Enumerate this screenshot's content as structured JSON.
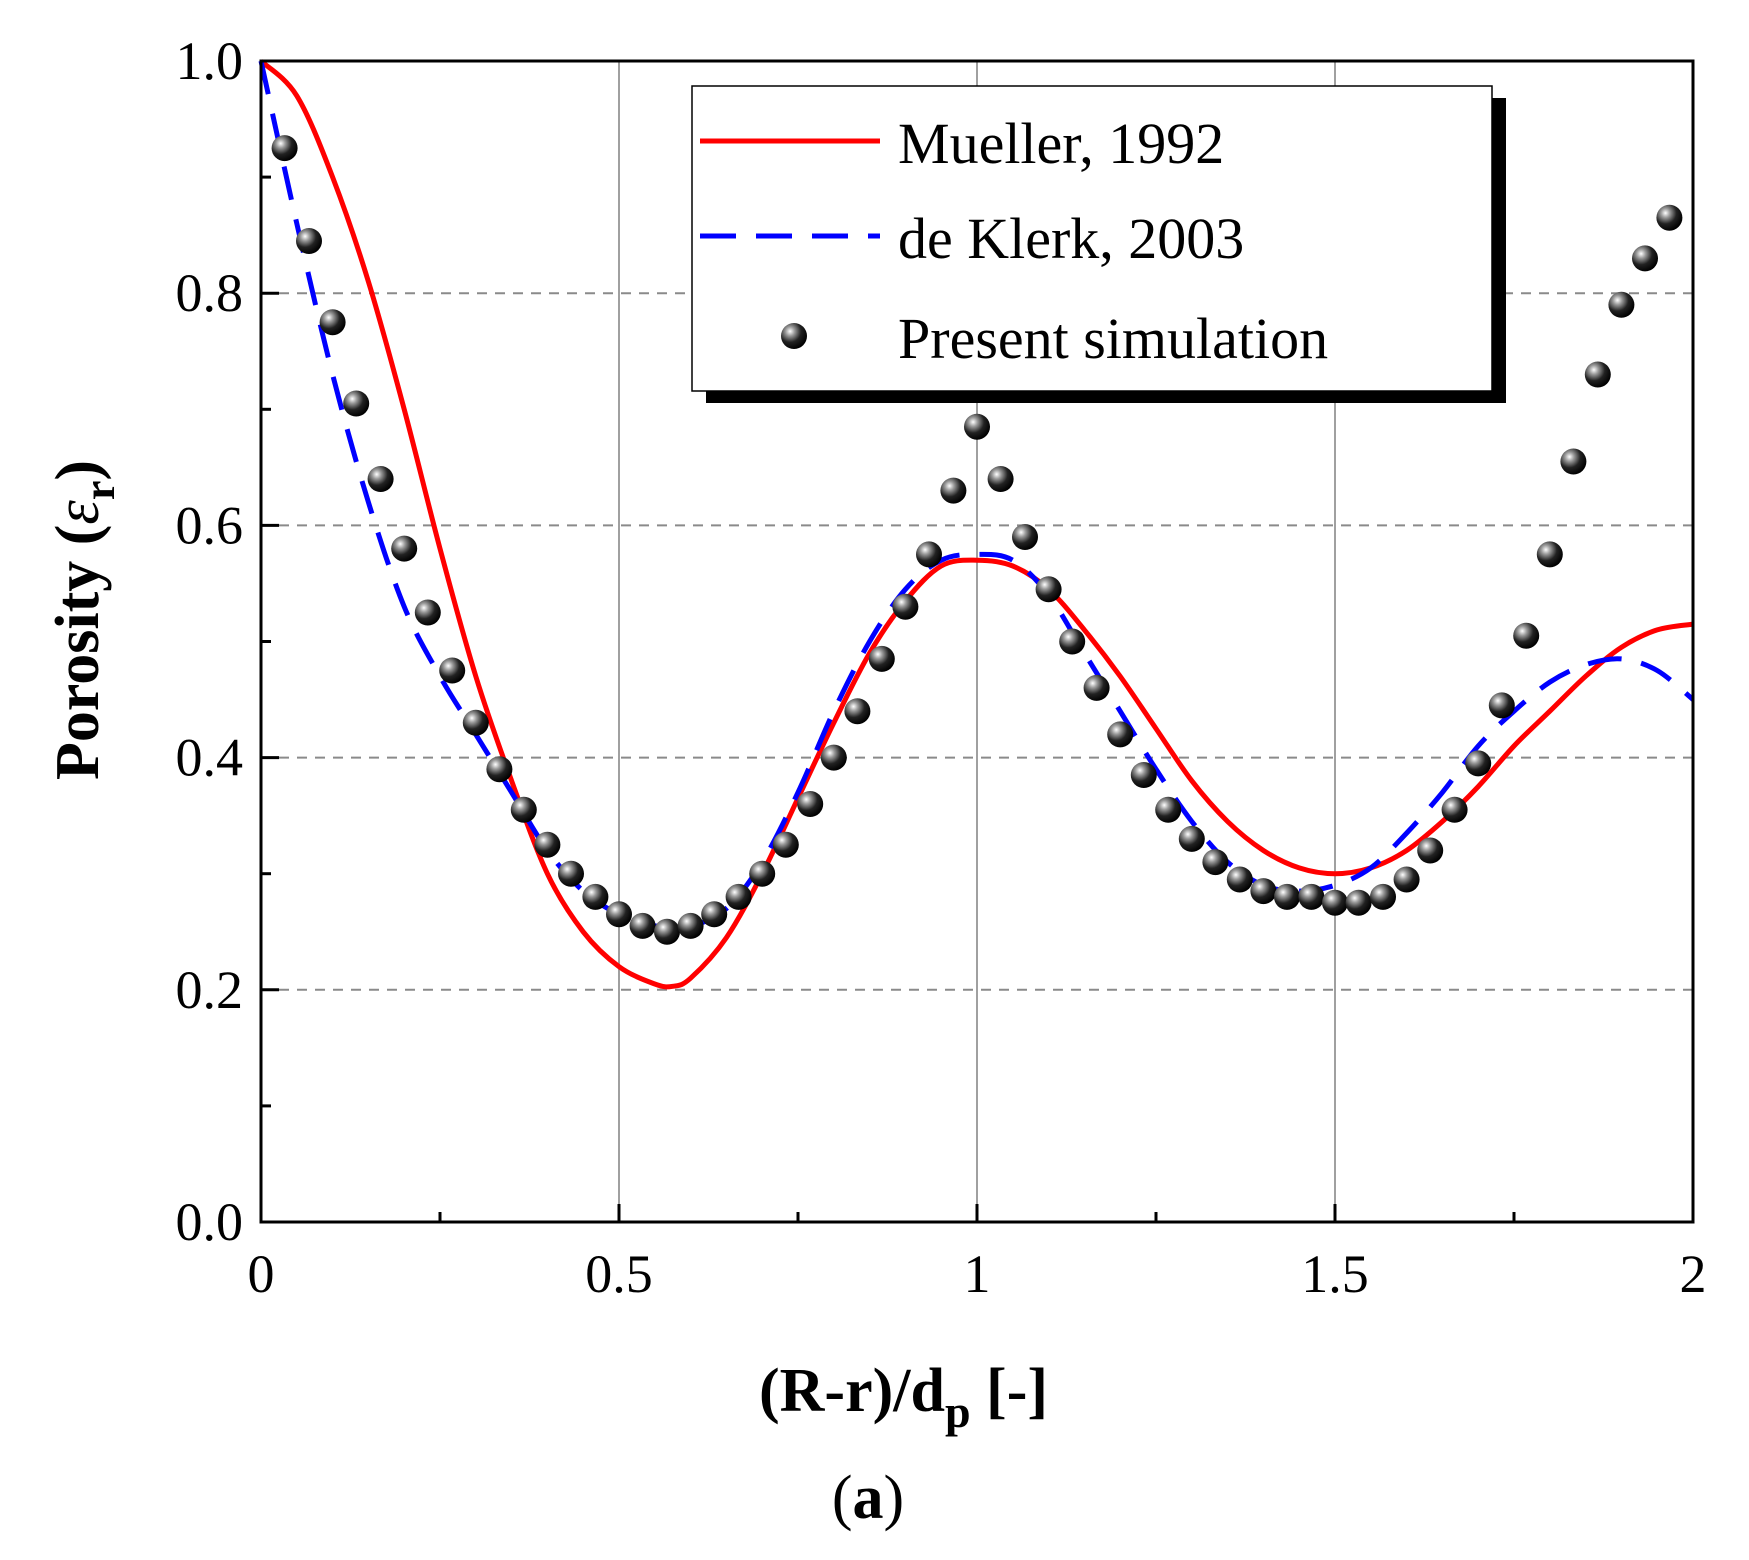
{
  "chart_data": {
    "type": "line",
    "title": "",
    "xlabel": {
      "main": "(R-r)/d",
      "sub": "p",
      "tail": " [-]"
    },
    "ylabel": {
      "main": "Porosity (",
      "symbol": "ε",
      "sub": "r",
      "tail": ")"
    },
    "xlim": [
      0,
      2
    ],
    "ylim": [
      0,
      1
    ],
    "x_tick_labels": [
      "0",
      "0.5",
      "1",
      "1.5",
      "2"
    ],
    "y_tick_labels": [
      "0.0",
      "0.2",
      "0.4",
      "0.6",
      "0.8",
      "1.0"
    ],
    "grid": "vertical solid, horizontal dashed",
    "legend_position": "top-right",
    "caption": {
      "open": "(",
      "letter": "a",
      "close": ")"
    },
    "colors": {
      "mueller": "#ff0000",
      "deklerk": "#0000ff",
      "simulation": "#000000"
    },
    "series": [
      {
        "name": "Mueller, 1992",
        "style": "solid",
        "x": [
          0,
          0.05,
          0.1,
          0.15,
          0.2,
          0.25,
          0.3,
          0.35,
          0.4,
          0.45,
          0.5,
          0.55,
          0.575,
          0.6,
          0.65,
          0.7,
          0.75,
          0.8,
          0.85,
          0.9,
          0.95,
          1.0,
          1.05,
          1.1,
          1.15,
          1.2,
          1.25,
          1.3,
          1.35,
          1.4,
          1.45,
          1.5,
          1.55,
          1.6,
          1.65,
          1.7,
          1.75,
          1.8,
          1.85,
          1.9,
          1.95,
          2.0
        ],
        "y": [
          1.0,
          0.97,
          0.9,
          0.81,
          0.7,
          0.58,
          0.47,
          0.38,
          0.3,
          0.25,
          0.22,
          0.205,
          0.203,
          0.21,
          0.245,
          0.3,
          0.365,
          0.43,
          0.49,
          0.535,
          0.565,
          0.57,
          0.565,
          0.545,
          0.51,
          0.47,
          0.425,
          0.38,
          0.345,
          0.32,
          0.305,
          0.3,
          0.305,
          0.32,
          0.345,
          0.375,
          0.41,
          0.44,
          0.47,
          0.495,
          0.51,
          0.515
        ]
      },
      {
        "name": "de Klerk, 2003",
        "style": "dashed",
        "x": [
          0,
          0.05,
          0.1,
          0.15,
          0.2,
          0.25,
          0.3,
          0.35,
          0.4,
          0.45,
          0.5,
          0.55,
          0.6,
          0.65,
          0.7,
          0.75,
          0.8,
          0.85,
          0.9,
          0.95,
          1.0,
          1.05,
          1.1,
          1.15,
          1.2,
          1.25,
          1.3,
          1.35,
          1.4,
          1.45,
          1.5,
          1.55,
          1.6,
          1.65,
          1.7,
          1.75,
          1.8,
          1.85,
          1.9,
          1.95,
          2.0
        ],
        "y": [
          1.0,
          0.86,
          0.73,
          0.62,
          0.53,
          0.47,
          0.42,
          0.37,
          0.32,
          0.285,
          0.265,
          0.255,
          0.255,
          0.27,
          0.31,
          0.37,
          0.44,
          0.5,
          0.545,
          0.57,
          0.575,
          0.57,
          0.54,
          0.49,
          0.44,
          0.39,
          0.345,
          0.31,
          0.29,
          0.285,
          0.29,
          0.305,
          0.335,
          0.37,
          0.41,
          0.44,
          0.465,
          0.48,
          0.485,
          0.475,
          0.45
        ]
      },
      {
        "name": "Present simulation",
        "style": "markers",
        "x": [
          0.033,
          0.067,
          0.1,
          0.133,
          0.167,
          0.2,
          0.233,
          0.267,
          0.3,
          0.333,
          0.367,
          0.4,
          0.433,
          0.467,
          0.5,
          0.533,
          0.567,
          0.6,
          0.633,
          0.667,
          0.7,
          0.733,
          0.767,
          0.8,
          0.833,
          0.867,
          0.9,
          0.933,
          0.967,
          1.0,
          1.033,
          1.067,
          1.1,
          1.133,
          1.167,
          1.2,
          1.233,
          1.267,
          1.3,
          1.333,
          1.367,
          1.4,
          1.433,
          1.467,
          1.5,
          1.533,
          1.567,
          1.6,
          1.633,
          1.667,
          1.7,
          1.733,
          1.767,
          1.8,
          1.833,
          1.867,
          1.9,
          1.933,
          1.967
        ],
        "y": [
          0.925,
          0.845,
          0.775,
          0.705,
          0.64,
          0.58,
          0.525,
          0.475,
          0.43,
          0.39,
          0.355,
          0.325,
          0.3,
          0.28,
          0.265,
          0.255,
          0.25,
          0.255,
          0.265,
          0.28,
          0.3,
          0.325,
          0.36,
          0.4,
          0.44,
          0.485,
          0.53,
          0.575,
          0.63,
          0.685,
          0.64,
          0.59,
          0.545,
          0.5,
          0.46,
          0.42,
          0.385,
          0.355,
          0.33,
          0.31,
          0.295,
          0.285,
          0.28,
          0.28,
          0.275,
          0.275,
          0.28,
          0.295,
          0.32,
          0.355,
          0.395,
          0.445,
          0.505,
          0.575,
          0.655,
          0.73,
          0.79,
          0.83,
          0.865
        ]
      }
    ]
  }
}
